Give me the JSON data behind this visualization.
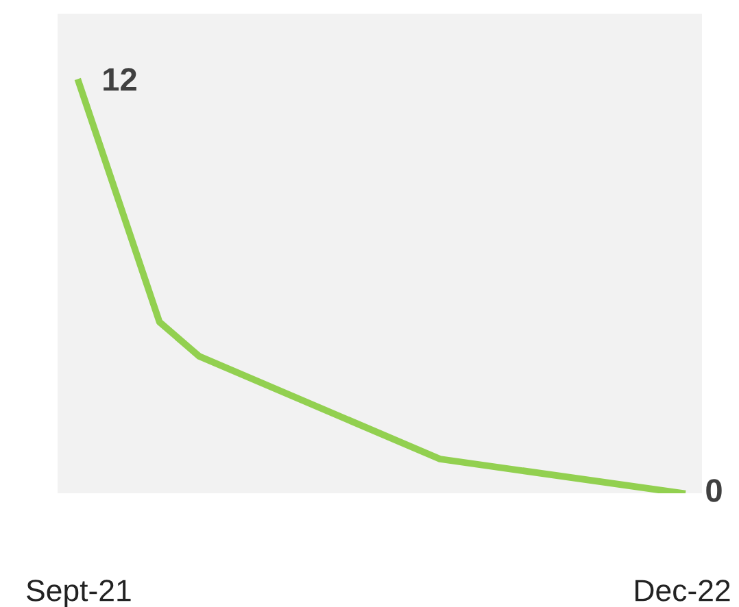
{
  "chart_data": {
    "type": "line",
    "x": [
      "2021-09",
      "2021-11",
      "2021-12",
      "2022-06",
      "2022-12"
    ],
    "series": [
      {
        "color": "#92d050",
        "values": [
          12,
          5,
          4,
          1,
          0
        ],
        "value_labels": [
          "12",
          null,
          null,
          null,
          "0"
        ]
      }
    ],
    "xlim": [
      "2021-08-16",
      "2022-12-16"
    ],
    "xticks": [
      {
        "value": "2021-09",
        "label": "Sept-21"
      },
      {
        "value": "2022-12",
        "label": "Dec-22"
      }
    ],
    "ylim": [
      0,
      14
    ],
    "tick_labels": "x",
    "grid": false,
    "legend": false,
    "marker": "none",
    "line_style": "solid"
  }
}
